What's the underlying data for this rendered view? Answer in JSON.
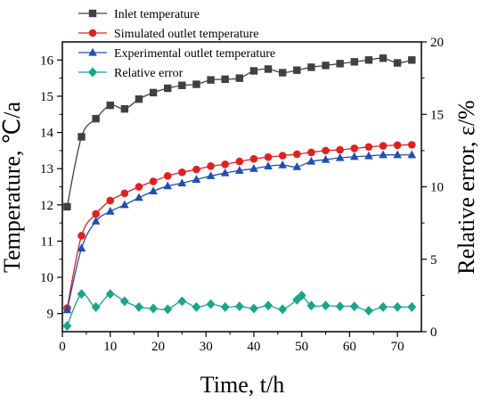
{
  "chart_data": {
    "type": "line",
    "xlabel": "Time, t/h",
    "ylabel_left": "Temperature, ℃/a",
    "ylabel_right": "Relative error, ε/%",
    "xlim": [
      0,
      75
    ],
    "ylim_left": [
      8.5,
      16.5
    ],
    "ylim_right": [
      0,
      20
    ],
    "x_ticks": [
      0,
      10,
      20,
      30,
      40,
      50,
      60,
      70
    ],
    "y_ticks_left": [
      9,
      10,
      11,
      12,
      13,
      14,
      15,
      16
    ],
    "y_ticks_right": [
      0,
      5,
      10,
      15,
      20
    ],
    "grid": false,
    "legend_position": "top-left",
    "series": [
      {
        "name": "Inlet temperature",
        "axis": "left",
        "color": "#404040",
        "marker": "square",
        "x": [
          1,
          4,
          7,
          10,
          13,
          16,
          19,
          22,
          25,
          28,
          31,
          34,
          37,
          40,
          43,
          46,
          49,
          52,
          55,
          58,
          61,
          64,
          67,
          70,
          73
        ],
        "y": [
          11.95,
          13.88,
          14.38,
          14.75,
          14.65,
          14.92,
          15.1,
          15.22,
          15.3,
          15.33,
          15.45,
          15.47,
          15.5,
          15.7,
          15.75,
          15.65,
          15.72,
          15.8,
          15.85,
          15.9,
          15.95,
          16.0,
          16.05,
          15.92,
          16.0
        ]
      },
      {
        "name": "Simulated outlet temperature",
        "axis": "left",
        "color": "#e02020",
        "marker": "circle",
        "x": [
          1,
          4,
          7,
          10,
          13,
          16,
          19,
          22,
          25,
          28,
          31,
          34,
          37,
          40,
          43,
          46,
          49,
          52,
          55,
          58,
          61,
          64,
          67,
          70,
          73
        ],
        "y": [
          9.15,
          11.15,
          11.75,
          12.12,
          12.32,
          12.5,
          12.65,
          12.8,
          12.9,
          12.98,
          13.07,
          13.12,
          13.2,
          13.27,
          13.32,
          13.36,
          13.4,
          13.45,
          13.5,
          13.52,
          13.56,
          13.6,
          13.63,
          13.65,
          13.66
        ]
      },
      {
        "name": "Experimental outlet temperature",
        "axis": "left",
        "color": "#1f4fb0",
        "marker": "triangle",
        "x": [
          1,
          4,
          7,
          10,
          13,
          16,
          19,
          22,
          25,
          28,
          31,
          34,
          37,
          40,
          43,
          46,
          49,
          52,
          55,
          58,
          61,
          64,
          67,
          70,
          73
        ],
        "y": [
          9.1,
          10.8,
          11.55,
          11.82,
          12.0,
          12.2,
          12.38,
          12.52,
          12.6,
          12.7,
          12.8,
          12.88,
          12.95,
          13.0,
          13.07,
          13.1,
          13.05,
          13.2,
          13.25,
          13.3,
          13.33,
          13.35,
          13.38,
          13.38,
          13.38
        ]
      },
      {
        "name": "Relative error",
        "axis": "right",
        "color": "#1aa58a",
        "marker": "diamond",
        "x": [
          1,
          4,
          7,
          10,
          13,
          16,
          19,
          22,
          25,
          28,
          31,
          34,
          37,
          40,
          43,
          46,
          49,
          50,
          52,
          55,
          58,
          61,
          64,
          67,
          70,
          73
        ],
        "y": [
          0.4,
          2.6,
          1.7,
          2.6,
          2.1,
          1.7,
          1.6,
          1.55,
          2.1,
          1.7,
          1.9,
          1.7,
          1.75,
          1.6,
          1.8,
          1.55,
          2.2,
          2.5,
          1.8,
          1.8,
          1.75,
          1.75,
          1.45,
          1.7,
          1.7,
          1.7
        ]
      }
    ]
  }
}
